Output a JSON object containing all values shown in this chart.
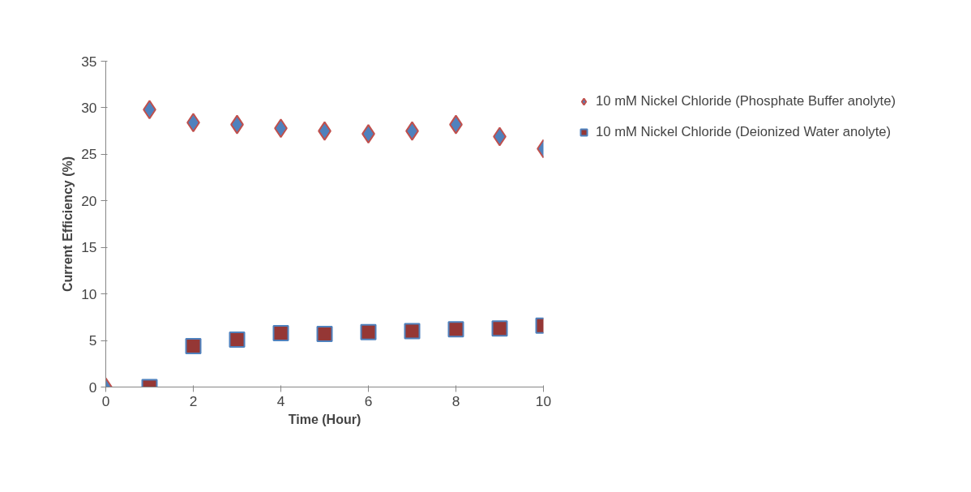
{
  "chart_data": {
    "type": "scatter",
    "xlabel": "Time (Hour)",
    "ylabel": "Current Efficiency (%)",
    "xlim": [
      0,
      10
    ],
    "xticks": [
      0,
      2,
      4,
      6,
      8,
      10
    ],
    "ylim": [
      0,
      35
    ],
    "yticks": [
      0,
      5,
      10,
      15,
      20,
      25,
      30,
      35
    ],
    "grid": false,
    "legend": "right",
    "series": [
      {
        "name": "10 mM Nickel Chloride (Phosphate Buffer anolyte)",
        "color": "#4f81bd",
        "marker": "diamond",
        "x": [
          0,
          1,
          2,
          3,
          4,
          5,
          6,
          7,
          8,
          9,
          10
        ],
        "values": [
          0,
          29.8,
          28.4,
          28.2,
          27.8,
          27.5,
          27.2,
          27.5,
          28.2,
          26.9,
          25.6
        ]
      },
      {
        "name": "10 mM Nickel Chloride (Deionized Water anolyte)",
        "color": "#953735",
        "marker": "square",
        "x": [
          1,
          2,
          3,
          4,
          5,
          6,
          7,
          8,
          9,
          10
        ],
        "values": [
          0,
          4.4,
          5.1,
          5.8,
          5.7,
          5.9,
          6.0,
          6.2,
          6.3,
          6.6
        ]
      }
    ]
  }
}
